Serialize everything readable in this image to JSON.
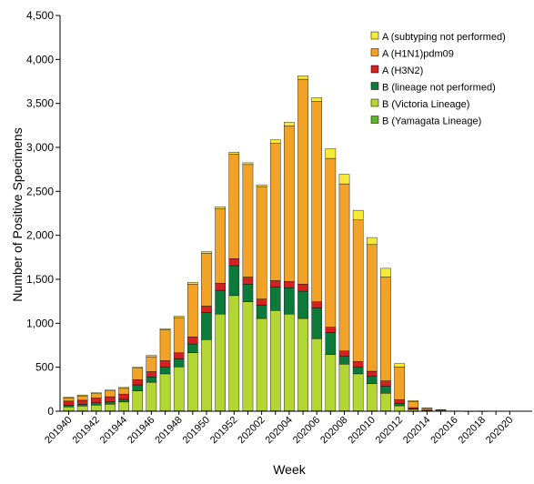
{
  "chart_data": {
    "type": "bar",
    "stacked": true,
    "xlabel": "Week",
    "ylabel": "Number of Positive Specimens",
    "ylim": [
      0,
      4500
    ],
    "yticks": [
      "0",
      "500",
      "1,000",
      "1,500",
      "2,000",
      "2,500",
      "3,000",
      "3,500",
      "4,000",
      "4,500"
    ],
    "ytick_values": [
      0,
      500,
      1000,
      1500,
      2000,
      2500,
      3000,
      3500,
      4000,
      4500
    ],
    "grid": false,
    "legend_position": "top-right",
    "categories": [
      "201940",
      "201941",
      "201942",
      "201943",
      "201944",
      "201945",
      "201946",
      "201947",
      "201948",
      "201949",
      "201950",
      "201951",
      "201952",
      "202001",
      "202002",
      "202003",
      "202004",
      "202005",
      "202006",
      "202007",
      "202008",
      "202009",
      "202010",
      "202011",
      "202012",
      "202013",
      "202014",
      "202015",
      "202016",
      "202017",
      "202018",
      "202019",
      "202020"
    ],
    "tick_labels": [
      "201940",
      "201942",
      "201944",
      "201946",
      "201948",
      "201950",
      "201952",
      "202002",
      "202004",
      "202006",
      "202008",
      "202010",
      "202012",
      "202014",
      "202016",
      "202018",
      "202020"
    ],
    "series": [
      {
        "name": "B (Yamagata Lineage)",
        "color": "#5fb52f",
        "values": [
          5,
          5,
          5,
          5,
          5,
          5,
          5,
          5,
          5,
          5,
          5,
          5,
          5,
          5,
          5,
          5,
          5,
          5,
          5,
          5,
          5,
          5,
          5,
          5,
          2,
          1,
          0,
          0,
          0,
          0,
          0,
          0,
          0
        ]
      },
      {
        "name": "B (Victoria Lineage)",
        "color": "#b4d633",
        "values": [
          45,
          55,
          65,
          75,
          100,
          225,
          325,
          420,
          500,
          660,
          810,
          1100,
          1310,
          1240,
          1050,
          1140,
          1100,
          1050,
          820,
          640,
          530,
          420,
          310,
          200,
          60,
          20,
          5,
          2,
          0,
          0,
          0,
          0,
          0
        ]
      },
      {
        "name": "B (lineage not performed)",
        "color": "#0b7a3a",
        "values": [
          20,
          20,
          25,
          25,
          30,
          70,
          60,
          80,
          90,
          100,
          310,
          270,
          340,
          200,
          150,
          270,
          300,
          310,
          350,
          250,
          90,
          80,
          80,
          80,
          30,
          5,
          2,
          1,
          0,
          0,
          0,
          0,
          0
        ]
      },
      {
        "name": "A (H3N2)",
        "color": "#d42020",
        "values": [
          45,
          45,
          55,
          60,
          60,
          60,
          60,
          70,
          70,
          80,
          70,
          80,
          80,
          80,
          70,
          70,
          70,
          80,
          70,
          60,
          60,
          60,
          60,
          60,
          40,
          15,
          5,
          2,
          0,
          0,
          0,
          0,
          0
        ]
      },
      {
        "name": "A (H1N1)pdm09",
        "color": "#f1a227",
        "values": [
          35,
          50,
          50,
          65,
          65,
          130,
          170,
          350,
          400,
          600,
          600,
          850,
          1190,
          1280,
          1280,
          1560,
          1770,
          2330,
          2280,
          1920,
          1900,
          1610,
          1440,
          1180,
          370,
          70,
          20,
          10,
          3,
          1,
          0,
          0,
          0
        ]
      },
      {
        "name": "A (subtyping not performed)",
        "color": "#f7ea36",
        "values": [
          10,
          10,
          10,
          10,
          10,
          10,
          15,
          15,
          15,
          20,
          20,
          20,
          20,
          20,
          20,
          40,
          40,
          40,
          40,
          110,
          110,
          110,
          80,
          100,
          40,
          10,
          5,
          3,
          1,
          1,
          1,
          0,
          0
        ]
      }
    ]
  }
}
